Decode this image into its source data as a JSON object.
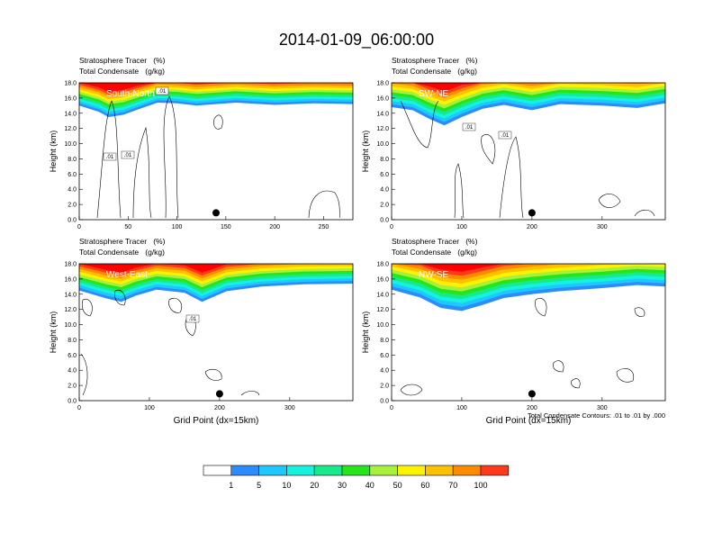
{
  "figure": {
    "title": "2014-01-09_06:00:00",
    "footnote": "Total Condensate Contours: .01 to .01 by .000"
  },
  "colors": {
    "band_0_1": "#ffffff",
    "band_1_5": "#2b8cff",
    "band_5_10": "#1ec8ff",
    "band_10_20": "#15f2e0",
    "band_20_30": "#18e98a",
    "band_30_40": "#24e61a",
    "band_40_50": "#a8f03a",
    "band_50_60": "#fff200",
    "band_60_70": "#ffc000",
    "band_70_100": "#ff8a00",
    "band_100": "#ff3a1a",
    "band_top": "#ff0000"
  },
  "chart_data": [
    {
      "type": "heatmap",
      "panel": "South-North",
      "title": "Stratosphere Tracer   (%)",
      "subtitle": "Total Condensate   (g/kg)",
      "xlabel": "",
      "ylabel": "Height (km)",
      "xlim": [
        0,
        280
      ],
      "ylim": [
        0,
        18
      ],
      "xticks": [
        "0",
        "50",
        "100",
        "150",
        "200",
        "250"
      ],
      "yticks": [
        "0.0",
        "2.0",
        "4.0",
        "6.0",
        "8.0",
        "10.0",
        "12.0",
        "14.0",
        "16.0",
        "18.0"
      ],
      "marker_x": 140,
      "contour_labels": [
        ".01",
        ".01",
        ".01"
      ],
      "tracer_base_km": [
        [
          0,
          15.0
        ],
        [
          20,
          14.2
        ],
        [
          30,
          13.5
        ],
        [
          45,
          13.8
        ],
        [
          60,
          14.5
        ],
        [
          80,
          15.4
        ],
        [
          100,
          15.3
        ],
        [
          120,
          15.0
        ],
        [
          140,
          15.2
        ],
        [
          160,
          15.4
        ],
        [
          200,
          15.1
        ],
        [
          240,
          15.3
        ],
        [
          280,
          15.2
        ]
      ]
    },
    {
      "type": "heatmap",
      "panel": "SW-NE",
      "title": "Stratosphere Tracer   (%)",
      "subtitle": "Total Condensate   (g/kg)",
      "xlabel": "",
      "ylabel": "Height (km)",
      "xlim": [
        0,
        390
      ],
      "ylim": [
        0,
        18
      ],
      "xticks": [
        "0",
        "100",
        "200",
        "300"
      ],
      "yticks": [
        "0.0",
        "2.0",
        "4.0",
        "6.0",
        "8.0",
        "10.0",
        "12.0",
        "14.0",
        "16.0",
        "18.0"
      ],
      "marker_x": 200,
      "contour_labels": [
        ".01",
        ".01"
      ],
      "tracer_base_km": [
        [
          0,
          14.8
        ],
        [
          30,
          14.4
        ],
        [
          55,
          13.2
        ],
        [
          75,
          12.4
        ],
        [
          100,
          13.5
        ],
        [
          130,
          14.6
        ],
        [
          160,
          15.1
        ],
        [
          200,
          14.4
        ],
        [
          240,
          15.2
        ],
        [
          300,
          15.0
        ],
        [
          350,
          14.7
        ],
        [
          390,
          15.3
        ]
      ]
    },
    {
      "type": "heatmap",
      "panel": "West-East",
      "title": "Stratosphere Tracer   (%)",
      "subtitle": "Total Condensate   (g/kg)",
      "xlabel": "Grid Point (dx=15km)",
      "ylabel": "Height (km)",
      "xlim": [
        0,
        390
      ],
      "ylim": [
        0,
        18
      ],
      "xticks": [
        "0",
        "100",
        "200",
        "300"
      ],
      "yticks": [
        "0.0",
        "2.0",
        "4.0",
        "6.0",
        "8.0",
        "10.0",
        "12.0",
        "14.0",
        "16.0",
        "18.0"
      ],
      "marker_x": 200,
      "contour_labels": [
        ".01"
      ],
      "tracer_base_km": [
        [
          0,
          14.5
        ],
        [
          40,
          13.4
        ],
        [
          60,
          13.0
        ],
        [
          80,
          13.8
        ],
        [
          110,
          14.6
        ],
        [
          150,
          14.2
        ],
        [
          175,
          13.0
        ],
        [
          210,
          14.4
        ],
        [
          260,
          15.0
        ],
        [
          320,
          15.3
        ],
        [
          390,
          15.4
        ]
      ]
    },
    {
      "type": "heatmap",
      "panel": "NW-SE",
      "title": "Stratosphere Tracer   (%)",
      "subtitle": "Total Condensate   (g/kg)",
      "xlabel": "Grid Point (dx=15km)",
      "ylabel": "Height (km)",
      "xlim": [
        0,
        390
      ],
      "ylim": [
        0,
        18
      ],
      "xticks": [
        "0",
        "100",
        "200",
        "300"
      ],
      "yticks": [
        "0.0",
        "2.0",
        "4.0",
        "6.0",
        "8.0",
        "10.0",
        "12.0",
        "14.0",
        "16.0",
        "18.0"
      ],
      "marker_x": 200,
      "contour_labels": [],
      "tracer_base_km": [
        [
          0,
          14.6
        ],
        [
          40,
          13.6
        ],
        [
          70,
          12.2
        ],
        [
          100,
          11.8
        ],
        [
          130,
          12.6
        ],
        [
          160,
          13.5
        ],
        [
          200,
          14.0
        ],
        [
          240,
          14.4
        ],
        [
          300,
          14.8
        ],
        [
          350,
          15.2
        ],
        [
          390,
          15.0
        ]
      ]
    }
  ],
  "colorbar": {
    "labels": [
      "1",
      "5",
      "10",
      "20",
      "30",
      "40",
      "50",
      "60",
      "70",
      "100"
    ],
    "colors": [
      "#ffffff",
      "#2b8cff",
      "#1ec8ff",
      "#15f2e0",
      "#18e98a",
      "#24e61a",
      "#a8f03a",
      "#fff200",
      "#ffc000",
      "#ff8a00",
      "#ff3a1a"
    ]
  }
}
